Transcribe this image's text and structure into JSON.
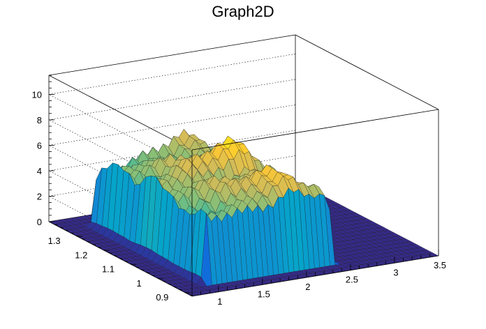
{
  "chart_data": {
    "type": "surface",
    "title": "Graph2D",
    "x_ticks": [
      "1",
      "1.5",
      "2",
      "2.5",
      "3",
      "3.5"
    ],
    "y_ticks": [
      "0.9",
      "1",
      "1.1",
      "1.2",
      "1.3"
    ],
    "z_ticks": [
      "0",
      "2",
      "4",
      "6",
      "8",
      "10"
    ],
    "xlim": [
      0.7,
      3.5
    ],
    "ylim": [
      0.87,
      1.4
    ],
    "zlim": [
      0,
      11.5
    ],
    "grid": true,
    "colormap": "parula",
    "colors": [
      "#352a87",
      "#0f5cdd",
      "#1481d6",
      "#06a4ca",
      "#2eb7a4",
      "#87bf77",
      "#d1bb59",
      "#fec832",
      "#f9fb0e"
    ],
    "plateau_level": 5.2,
    "peak_level": 7.2
  }
}
